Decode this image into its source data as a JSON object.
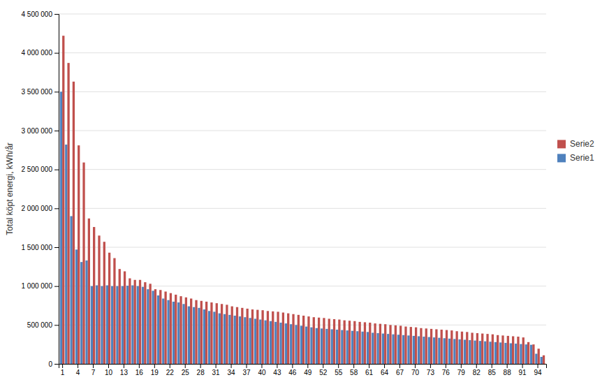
{
  "chart_data": {
    "type": "bar",
    "ylabel": "Total köpt energi, kWh/år",
    "x": [
      1,
      2,
      3,
      4,
      5,
      6,
      7,
      8,
      9,
      10,
      11,
      12,
      13,
      14,
      15,
      16,
      17,
      18,
      19,
      20,
      21,
      22,
      23,
      24,
      25,
      26,
      27,
      28,
      29,
      30,
      31,
      32,
      33,
      34,
      35,
      36,
      37,
      38,
      39,
      40,
      41,
      42,
      43,
      44,
      45,
      46,
      47,
      48,
      49,
      50,
      51,
      52,
      53,
      54,
      55,
      56,
      57,
      58,
      59,
      60,
      61,
      62,
      63,
      64,
      65,
      66,
      67,
      68,
      69,
      70,
      71,
      72,
      73,
      74,
      75,
      76,
      77,
      78,
      79,
      80,
      81,
      82,
      83,
      84,
      85,
      86,
      87,
      88,
      89,
      90,
      91,
      92,
      93,
      94,
      95
    ],
    "xlim": [
      0.3,
      95.7
    ],
    "xticks": [
      1,
      4,
      7,
      10,
      13,
      16,
      19,
      22,
      25,
      28,
      31,
      34,
      37,
      40,
      43,
      46,
      49,
      52,
      55,
      58,
      61,
      64,
      67,
      70,
      73,
      76,
      79,
      82,
      85,
      88,
      91,
      94
    ],
    "ylim": [
      0,
      4500000
    ],
    "yticks": [
      0,
      {
        "value": 500000,
        "label": "500 000"
      },
      {
        "value": 1000000,
        "label": "1 000 000"
      },
      {
        "value": 1500000,
        "label": "1 500 000"
      },
      {
        "value": 2000000,
        "label": "2 000 000"
      },
      {
        "value": 2500000,
        "label": "2 500 000"
      },
      {
        "value": 3000000,
        "label": "3 000 000"
      },
      {
        "value": 3500000,
        "label": "3 500 000"
      },
      {
        "value": 4000000,
        "label": "4 000 000"
      },
      {
        "value": 4500000,
        "label": "4 500 000"
      }
    ],
    "grid": true,
    "legend": "right",
    "series": [
      {
        "name": "Serie1",
        "color": "#4F81BD",
        "values": [
          3500000,
          2820000,
          1900000,
          1470000,
          1310000,
          1330000,
          1000000,
          1010000,
          1000000,
          1010000,
          1000000,
          1000000,
          1000000,
          1005000,
          1010000,
          1000000,
          990000,
          960000,
          940000,
          880000,
          840000,
          820000,
          800000,
          790000,
          770000,
          740000,
          730000,
          720000,
          700000,
          680000,
          670000,
          650000,
          640000,
          630000,
          620000,
          610000,
          600000,
          590000,
          580000,
          570000,
          560000,
          550000,
          540000,
          530000,
          520000,
          510000,
          500000,
          490000,
          480000,
          470000,
          460000,
          455000,
          450000,
          445000,
          440000,
          435000,
          430000,
          425000,
          420000,
          415000,
          410000,
          400000,
          395000,
          390000,
          385000,
          380000,
          375000,
          370000,
          365000,
          360000,
          355000,
          350000,
          345000,
          340000,
          335000,
          330000,
          325000,
          320000,
          315000,
          310000,
          305000,
          300000,
          295000,
          290000,
          285000,
          280000,
          275000,
          270000,
          265000,
          260000,
          255000,
          250000,
          245000,
          130000,
          90000
        ]
      },
      {
        "name": "Serie2",
        "color": "#C0504D",
        "values": [
          4220000,
          3870000,
          3630000,
          2810000,
          2590000,
          1870000,
          1760000,
          1650000,
          1570000,
          1430000,
          1360000,
          1220000,
          1190000,
          1100000,
          1080000,
          1080000,
          1050000,
          1030000,
          960000,
          950000,
          930000,
          910000,
          890000,
          870000,
          855000,
          840000,
          820000,
          810000,
          800000,
          790000,
          780000,
          770000,
          760000,
          740000,
          730000,
          720000,
          710000,
          700000,
          695000,
          690000,
          680000,
          675000,
          670000,
          660000,
          650000,
          640000,
          630000,
          620000,
          610000,
          600000,
          595000,
          590000,
          580000,
          575000,
          570000,
          560000,
          555000,
          550000,
          540000,
          535000,
          530000,
          520000,
          515000,
          510000,
          500000,
          495000,
          490000,
          480000,
          475000,
          470000,
          460000,
          455000,
          450000,
          445000,
          440000,
          435000,
          430000,
          420000,
          415000,
          410000,
          400000,
          395000,
          390000,
          385000,
          380000,
          370000,
          365000,
          360000,
          355000,
          350000,
          340000,
          280000,
          250000,
          195000,
          110000
        ]
      }
    ]
  }
}
